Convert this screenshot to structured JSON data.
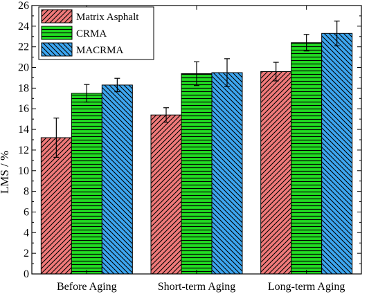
{
  "chart_data": {
    "type": "bar",
    "title": "",
    "xlabel": "",
    "ylabel": "LMS / %",
    "ylim": [
      0,
      26
    ],
    "yticks": [
      0,
      2,
      4,
      6,
      8,
      10,
      12,
      14,
      16,
      18,
      20,
      22,
      24,
      26
    ],
    "grid": false,
    "legend_position": "top-left",
    "categories": [
      "Before Aging",
      "Short-term Aging",
      "Long-term Aging"
    ],
    "series": [
      {
        "name": "Matrix Asphalt",
        "values": [
          13.2,
          15.4,
          19.6
        ],
        "errors": [
          1.9,
          0.7,
          0.9
        ],
        "color": "#f07a7a",
        "pattern": "diagonal-up"
      },
      {
        "name": "CRMA",
        "values": [
          17.5,
          19.4,
          22.4
        ],
        "errors": [
          0.85,
          1.15,
          0.8
        ],
        "color": "#22dd22",
        "pattern": "horizontal"
      },
      {
        "name": "MACRMA",
        "values": [
          18.3,
          19.5,
          23.3
        ],
        "errors": [
          0.65,
          1.35,
          1.2
        ],
        "color": "#3da6f0",
        "pattern": "diagonal-down"
      }
    ]
  }
}
